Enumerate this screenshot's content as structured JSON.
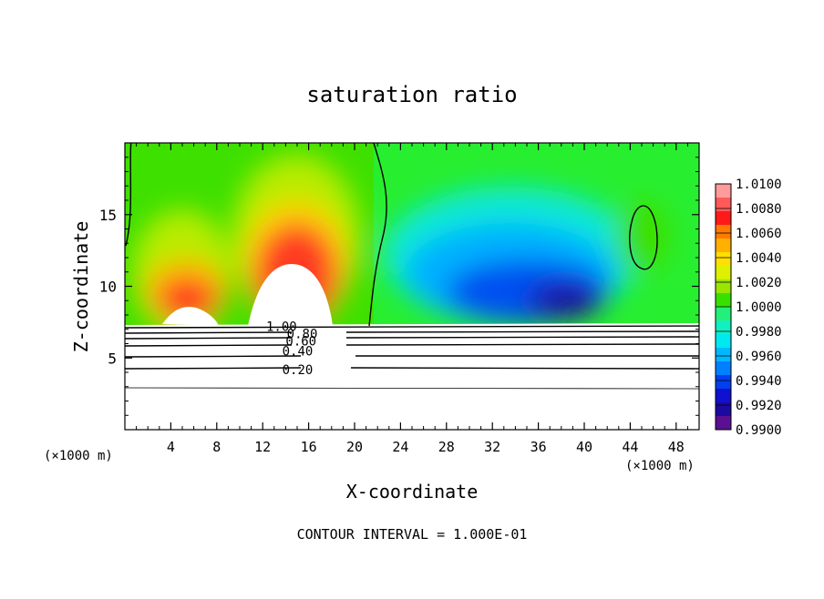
{
  "chart_data": {
    "type": "heatmap",
    "title": "saturation ratio",
    "xlabel": "X-coordinate",
    "ylabel": "Z-coordinate",
    "x_unit": "(×1000 m)",
    "x_unit_right": "(×1000 m)",
    "footer": "CONTOUR INTERVAL = 1.000E-01",
    "xlim": [
      0,
      50
    ],
    "ylim": [
      0,
      20
    ],
    "x_ticks": [
      4,
      8,
      12,
      16,
      20,
      24,
      28,
      32,
      36,
      40,
      44,
      48
    ],
    "y_ticks": [
      5,
      10,
      15
    ],
    "colorbar": {
      "labels": [
        "1.0100",
        "1.0080",
        "1.0060",
        "1.0040",
        "1.0020",
        "1.0000",
        "0.9980",
        "0.9960",
        "0.9940",
        "0.9920",
        "0.9900"
      ],
      "colors": [
        "#ff9b9b",
        "#ff5a5a",
        "#ff1a1a",
        "#ff7a00",
        "#ffb000",
        "#ffe000",
        "#dcf000",
        "#9ae600",
        "#38e000",
        "#22f07a",
        "#10f0c0",
        "#00e8f0",
        "#00b8ff",
        "#0080ff",
        "#0040f0",
        "#1010d0",
        "#1a0aa0",
        "#5a1090"
      ],
      "range": [
        0.99,
        1.01
      ]
    },
    "contour_labels": [
      {
        "text": "1.00",
        "x": 12.3,
        "y": 7.2
      },
      {
        "text": "0.80",
        "x": 14.1,
        "y": 6.7
      },
      {
        "text": "0.60",
        "x": 14.0,
        "y": 6.2
      },
      {
        "text": "0.40",
        "x": 13.7,
        "y": 5.5
      },
      {
        "text": "0.20",
        "x": 13.7,
        "y": 4.2
      }
    ]
  }
}
